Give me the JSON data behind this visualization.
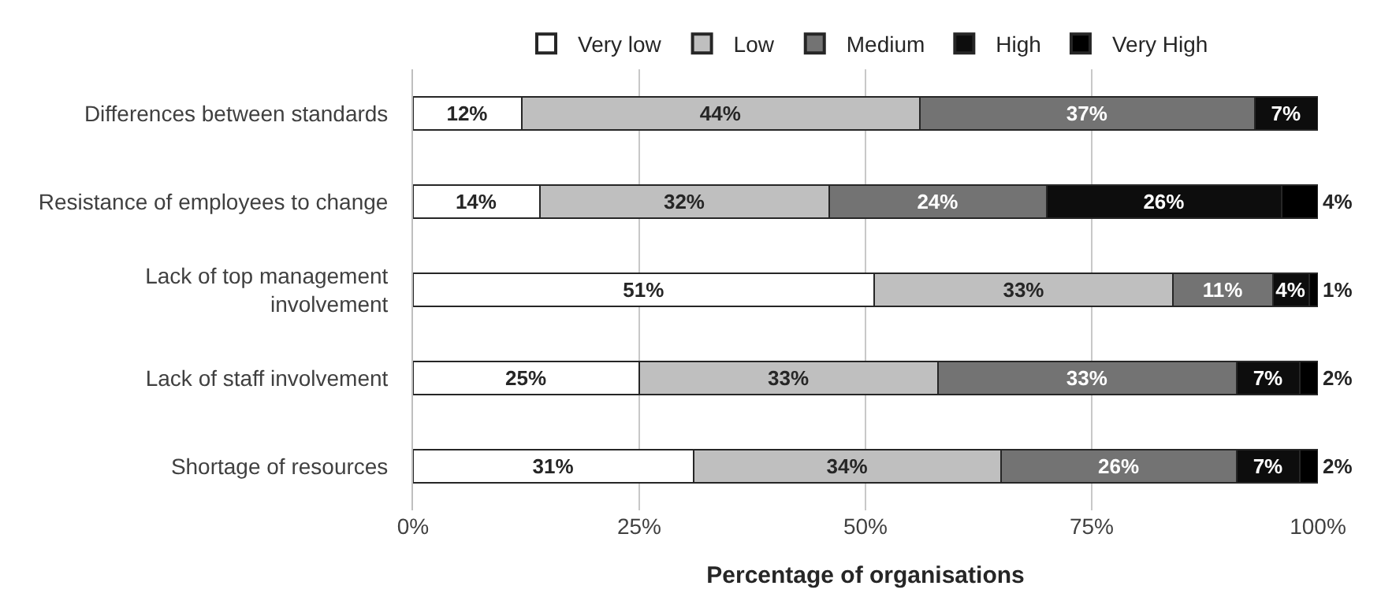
{
  "chart_data": {
    "type": "bar",
    "orientation": "horizontal",
    "stacked": true,
    "xlabel": "Percentage of organisations",
    "categories": [
      "Differences between standards",
      "Resistance of employees to change",
      "Lack of top management\ninvolvement",
      "Lack of staff involvement",
      "Shortage of resources"
    ],
    "series": [
      {
        "name": "Very low",
        "color": "#ffffff",
        "values": [
          12,
          14,
          51,
          25,
          31
        ],
        "value_labels": [
          "12%",
          "14%",
          "51%",
          "25%",
          "31%"
        ]
      },
      {
        "name": "Low",
        "color": "#bfbfbf",
        "values": [
          44,
          32,
          33,
          33,
          34
        ],
        "value_labels": [
          "44%",
          "32%",
          "33%",
          "33%",
          "34%"
        ]
      },
      {
        "name": "Medium",
        "color": "#737373",
        "values": [
          37,
          24,
          11,
          33,
          26
        ],
        "value_labels": [
          "37%",
          "24%",
          "11%",
          "33%",
          "26%"
        ]
      },
      {
        "name": "High",
        "color": "#0d0d0d",
        "values": [
          7,
          26,
          4,
          7,
          7
        ],
        "value_labels": [
          "7%",
          "26%",
          "4%",
          "7%",
          "7%"
        ]
      },
      {
        "name": "Very High",
        "color": "#000000",
        "values": [
          null,
          4,
          1,
          2,
          2
        ],
        "value_labels": [
          null,
          "4%",
          "1%",
          "2%",
          "2%"
        ]
      }
    ],
    "xlim": [
      0,
      100
    ],
    "xticks": [
      {
        "value": 0,
        "label": "0%"
      },
      {
        "value": 25,
        "label": "25%"
      },
      {
        "value": 50,
        "label": "50%"
      },
      {
        "value": 75,
        "label": "75%"
      },
      {
        "value": 100,
        "label": "100%"
      }
    ],
    "grid": "x",
    "legend": "top"
  }
}
